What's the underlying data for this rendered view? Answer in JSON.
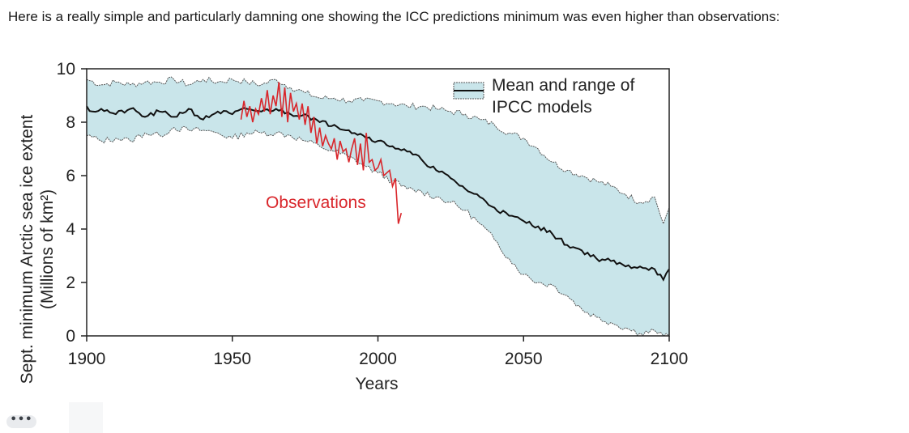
{
  "post": {
    "text": "Here is a really simple and particularly damning one showing the ICC predictions minimum was even higher than observations:"
  },
  "more_button": {
    "label": "•••"
  },
  "colors": {
    "band_fill": "#c9e5ea",
    "mean_line": "#111111",
    "observations": "#d9262b",
    "axis": "#222222",
    "text": "#222222"
  },
  "chart_data": {
    "type": "line",
    "xlabel": "Years",
    "ylabel_line1": "Sept. minimum Arctic sea ice extent",
    "ylabel_line2": "(Millions of km²)",
    "xlim": [
      1900,
      2100
    ],
    "ylim": [
      0,
      10
    ],
    "xticks": [
      1900,
      1950,
      2000,
      2050,
      2100
    ],
    "yticks": [
      0,
      2,
      4,
      6,
      8,
      10
    ],
    "legend": {
      "label_line1": "Mean and range of",
      "label_line2": "IPCC models",
      "placement": "top-right"
    },
    "annotation": {
      "label": "Observations"
    },
    "series": [
      {
        "name": "Mean and range of IPCC models",
        "kind": "mean",
        "x": [
          1900,
          1902,
          1905,
          1910,
          1915,
          1920,
          1925,
          1930,
          1935,
          1940,
          1945,
          1950,
          1955,
          1960,
          1965,
          1970,
          1975,
          1980,
          1985,
          1990,
          1995,
          2000,
          2005,
          2010,
          2015,
          2020,
          2025,
          2030,
          2035,
          2040,
          2045,
          2050,
          2055,
          2060,
          2065,
          2070,
          2075,
          2080,
          2085,
          2090,
          2095,
          2098,
          2100
        ],
        "values": [
          8.6,
          8.4,
          8.5,
          8.3,
          8.5,
          8.2,
          8.4,
          8.2,
          8.5,
          8.1,
          8.4,
          8.3,
          8.5,
          8.4,
          8.5,
          8.3,
          8.3,
          8.0,
          7.9,
          7.7,
          7.5,
          7.3,
          7.1,
          6.9,
          6.6,
          6.2,
          5.9,
          5.5,
          5.2,
          4.8,
          4.5,
          4.3,
          4.1,
          3.8,
          3.4,
          3.2,
          2.9,
          2.8,
          2.6,
          2.6,
          2.5,
          2.1,
          2.5
        ]
      },
      {
        "name": "range-upper",
        "kind": "band_upper",
        "x": [
          1900,
          1905,
          1910,
          1915,
          1920,
          1925,
          1930,
          1935,
          1940,
          1945,
          1950,
          1955,
          1960,
          1965,
          1970,
          1975,
          1980,
          1985,
          1990,
          1995,
          2000,
          2005,
          2010,
          2015,
          2020,
          2025,
          2030,
          2035,
          2040,
          2045,
          2050,
          2055,
          2060,
          2065,
          2070,
          2075,
          2080,
          2085,
          2090,
          2095,
          2098,
          2100
        ],
        "values": [
          9.6,
          9.4,
          9.5,
          9.4,
          9.5,
          9.5,
          9.6,
          9.4,
          9.6,
          9.5,
          9.6,
          9.5,
          9.4,
          9.6,
          9.3,
          9.1,
          8.9,
          8.9,
          8.8,
          8.8,
          8.8,
          8.7,
          8.6,
          8.6,
          8.5,
          8.4,
          8.3,
          8.1,
          7.9,
          7.6,
          7.4,
          7.0,
          6.5,
          6.2,
          6.0,
          5.8,
          5.6,
          5.3,
          5.0,
          5.2,
          4.2,
          4.8
        ]
      },
      {
        "name": "range-lower",
        "kind": "band_lower",
        "x": [
          1900,
          1905,
          1910,
          1915,
          1920,
          1925,
          1930,
          1935,
          1940,
          1945,
          1950,
          1955,
          1960,
          1965,
          1970,
          1975,
          1980,
          1985,
          1990,
          1995,
          2000,
          2005,
          2010,
          2015,
          2020,
          2025,
          2030,
          2035,
          2040,
          2045,
          2050,
          2055,
          2060,
          2065,
          2070,
          2075,
          2080,
          2085,
          2090,
          2095,
          2098,
          2100
        ],
        "values": [
          7.5,
          7.3,
          7.4,
          7.3,
          7.6,
          7.5,
          7.8,
          7.7,
          7.7,
          7.6,
          7.4,
          7.6,
          7.6,
          7.6,
          7.5,
          7.3,
          7.1,
          6.9,
          6.7,
          6.4,
          6.1,
          5.8,
          5.5,
          5.4,
          5.2,
          5.0,
          4.7,
          4.2,
          3.6,
          2.9,
          2.3,
          2.0,
          1.9,
          1.5,
          1.0,
          0.7,
          0.5,
          0.3,
          0.1,
          0.2,
          0.0,
          0.0
        ]
      },
      {
        "name": "Observations",
        "kind": "observations",
        "x": [
          1953,
          1954,
          1955,
          1956,
          1957,
          1958,
          1959,
          1960,
          1961,
          1962,
          1963,
          1964,
          1965,
          1966,
          1967,
          1968,
          1969,
          1970,
          1971,
          1972,
          1973,
          1974,
          1975,
          1976,
          1977,
          1978,
          1979,
          1980,
          1981,
          1982,
          1983,
          1984,
          1985,
          1986,
          1987,
          1988,
          1989,
          1990,
          1991,
          1992,
          1993,
          1994,
          1995,
          1996,
          1997,
          1998,
          1999,
          2000,
          2001,
          2002,
          2003,
          2004,
          2005,
          2006,
          2007,
          2008
        ],
        "values": [
          8.1,
          8.8,
          8.2,
          8.6,
          8.0,
          8.5,
          8.3,
          8.9,
          8.4,
          9.2,
          8.3,
          9.0,
          8.6,
          9.5,
          8.2,
          9.3,
          8.0,
          9.1,
          8.4,
          8.7,
          8.1,
          8.7,
          7.9,
          8.6,
          7.6,
          8.2,
          7.2,
          7.8,
          7.1,
          7.5,
          7.2,
          7.0,
          7.4,
          6.6,
          7.3,
          6.9,
          7.0,
          6.5,
          7.0,
          7.4,
          6.4,
          7.2,
          6.2,
          7.6,
          6.5,
          6.6,
          6.2,
          6.3,
          6.6,
          6.0,
          6.1,
          6.2,
          5.6,
          5.9,
          4.2,
          4.6
        ]
      }
    ]
  }
}
